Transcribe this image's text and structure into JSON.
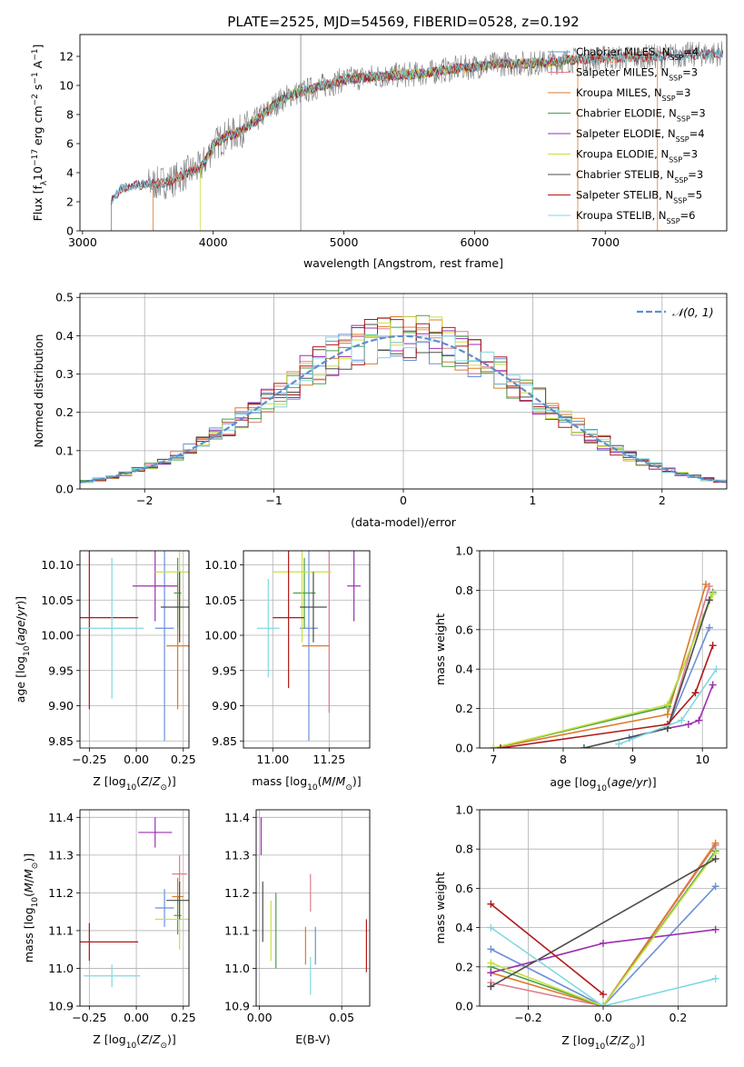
{
  "title": "PLATE=2525, MJD=54569, FIBERID=0528, z=0.192",
  "colors": {
    "Chabrier MILES": "#6a8fd8",
    "Salpeter MILES": "#e07b8a",
    "Kroupa MILES": "#dd7a2a",
    "Chabrier ELODIE": "#4aa04a",
    "Salpeter ELODIE": "#9b30b0",
    "Kroupa ELODIE": "#c8e040",
    "Chabrier STELIB": "#4d4d4d",
    "Salpeter STELIB": "#b01818",
    "Kroupa STELIB": "#80d8e0",
    "data": "#808080",
    "gauss": "#5b8fd0"
  },
  "chart_data": [
    {
      "id": "spectrum",
      "type": "line",
      "xlabel": "wavelength [Angstrom, rest frame]",
      "ylabel": "Flux [f",
      "ylabel_sub": "λ",
      "ylabel_rest": "10",
      "ylabel_exp": "-17",
      "ylabel_units": " erg cm",
      "ylabel_exp2": "-2",
      "ylabel_s": " s",
      "ylabel_exp3": "-1",
      "ylabel_A": " A",
      "ylabel_exp4": "-1",
      "ylabel_end": "]",
      "xlim": [
        2980,
        7930
      ],
      "ylim": [
        0,
        13.5
      ],
      "xticks": [
        3000,
        4000,
        5000,
        6000,
        7000
      ],
      "yticks": [
        0,
        2,
        4,
        6,
        8,
        10,
        12
      ],
      "envelope_x": [
        3220,
        3300,
        3400,
        3500,
        3600,
        3700,
        3800,
        3900,
        3950,
        4000,
        4100,
        4200,
        4300,
        4400,
        4500,
        4600,
        4700,
        4800,
        4900,
        5000,
        5200,
        5400,
        5600,
        5800,
        6000,
        6200,
        6400,
        6600,
        6800,
        7000,
        7200,
        7400,
        7600,
        7900
      ],
      "envelope_y": [
        2.1,
        2.9,
        3.1,
        3.2,
        3.3,
        3.5,
        4.0,
        4.3,
        5.0,
        5.9,
        6.5,
        6.8,
        7.4,
        8.1,
        8.9,
        9.4,
        9.6,
        9.9,
        10.1,
        10.4,
        10.6,
        10.7,
        10.8,
        11.1,
        11.3,
        11.5,
        11.5,
        11.6,
        11.8,
        11.9,
        11.9,
        12.0,
        12.1,
        12.2
      ],
      "series": [
        {
          "name": "Chabrier MILES",
          "nssp": "4"
        },
        {
          "name": "Salpeter MILES",
          "nssp": "3"
        },
        {
          "name": "Kroupa MILES",
          "nssp": "3"
        },
        {
          "name": "Chabrier ELODIE",
          "nssp": "3"
        },
        {
          "name": "Salpeter ELODIE",
          "nssp": "4"
        },
        {
          "name": "Kroupa ELODIE",
          "nssp": "3"
        },
        {
          "name": "Chabrier STELIB",
          "nssp": "3"
        },
        {
          "name": "Salpeter STELIB",
          "nssp": "5"
        },
        {
          "name": "Kroupa STELIB",
          "nssp": "6"
        }
      ],
      "legend_loc": "right"
    },
    {
      "id": "residuals",
      "type": "line",
      "xlabel": "(data-model)/error",
      "ylabel": "Normed distribution",
      "xlim": [
        -2.5,
        2.5
      ],
      "ylim": [
        0,
        0.51
      ],
      "xticks": [
        -2,
        -1,
        0,
        1,
        2
      ],
      "yticks": [
        0.0,
        0.1,
        0.2,
        0.3,
        0.4,
        0.5
      ],
      "bin_width": 0.1,
      "legend": "N(0,1)",
      "legend_loc": "top-right",
      "grid": true
    },
    {
      "id": "age-vs-Z",
      "type": "scatter",
      "xlabel": "Z [log10(Z/Z⊙)]",
      "ylabel": "age  [log10(age/yr)]",
      "xlim": [
        -0.3,
        0.28
      ],
      "ylim": [
        9.84,
        10.12
      ],
      "xticks": [
        -0.25,
        0.0,
        0.25
      ],
      "yticks": [
        9.85,
        9.9,
        9.95,
        10.0,
        10.05,
        10.1
      ],
      "points": [
        {
          "name": "Chabrier MILES",
          "x": 0.15,
          "y": 10.01,
          "xerr": 0.05,
          "yerr": 0.16
        },
        {
          "name": "Salpeter MILES",
          "x": 0.23,
          "y": 10.04,
          "xerr": 0.02,
          "yerr": 0.05
        },
        {
          "name": "Kroupa MILES",
          "x": 0.22,
          "y": 9.985,
          "xerr": 0.06,
          "yerr": 0.09
        },
        {
          "name": "Chabrier ELODIE",
          "x": 0.22,
          "y": 10.06,
          "xerr": 0.02,
          "yerr": 0.05
        },
        {
          "name": "Salpeter ELODIE",
          "x": 0.1,
          "y": 10.07,
          "xerr": 0.12,
          "yerr": 0.05
        },
        {
          "name": "Kroupa ELODIE",
          "x": 0.23,
          "y": 10.09,
          "xerr": 0.13,
          "yerr": 0.1
        },
        {
          "name": "Chabrier STELIB",
          "x": 0.23,
          "y": 10.04,
          "xerr": 0.1,
          "yerr": 0.05
        },
        {
          "name": "Salpeter STELIB",
          "x": -0.25,
          "y": 10.025,
          "xerr": 0.26,
          "yerr": 0.13
        },
        {
          "name": "Kroupa STELIB",
          "x": -0.13,
          "y": 10.01,
          "xerr": 0.17,
          "yerr": 0.1
        }
      ]
    },
    {
      "id": "age-vs-mass",
      "type": "scatter",
      "xlabel": "mass [log10(M/M⊙)]",
      "ylabel": "",
      "xlim": [
        10.87,
        11.43
      ],
      "ylim": [
        9.84,
        10.12
      ],
      "xticks": [
        11.0,
        11.25
      ],
      "yticks": [
        9.85,
        9.9,
        9.95,
        10.0,
        10.05,
        10.1
      ],
      "points": [
        {
          "name": "Chabrier MILES",
          "x": 11.16,
          "y": 10.01,
          "xerr": 0.04,
          "yerr": 0.16
        },
        {
          "name": "Salpeter MILES",
          "x": 11.25,
          "y": 10.04,
          "xerr": 0.0,
          "yerr": 0.15
        },
        {
          "name": "Kroupa MILES",
          "x": 11.19,
          "y": 9.985,
          "xerr": 0.06,
          "yerr": 0.0
        },
        {
          "name": "Chabrier ELODIE",
          "x": 11.14,
          "y": 10.06,
          "xerr": 0.05,
          "yerr": 0.05
        },
        {
          "name": "Salpeter ELODIE",
          "x": 11.36,
          "y": 10.07,
          "xerr": 0.03,
          "yerr": 0.05
        },
        {
          "name": "Kroupa ELODIE",
          "x": 11.13,
          "y": 10.09,
          "xerr": 0.13,
          "yerr": 0.1
        },
        {
          "name": "Chabrier STELIB",
          "x": 11.18,
          "y": 10.04,
          "xerr": 0.06,
          "yerr": 0.05
        },
        {
          "name": "Salpeter STELIB",
          "x": 11.07,
          "y": 10.025,
          "xerr": 0.07,
          "yerr": 0.1
        },
        {
          "name": "Kroupa STELIB",
          "x": 10.98,
          "y": 10.01,
          "xerr": 0.05,
          "yerr": 0.07
        }
      ]
    },
    {
      "id": "mass-weight-vs-age",
      "type": "line",
      "xlabel": "age  [log10(age/yr)]",
      "ylabel": "mass weight",
      "xlim": [
        6.8,
        10.35
      ],
      "ylim": [
        0,
        1.0
      ],
      "xticks": [
        7,
        8,
        9,
        10
      ],
      "yticks": [
        0.0,
        0.2,
        0.4,
        0.6,
        0.8,
        1.0
      ],
      "grid": true,
      "series": [
        {
          "name": "Chabrier MILES",
          "x": [
            8.95,
            9.5,
            10.1
          ],
          "y": [
            0.05,
            0.1,
            0.61
          ]
        },
        {
          "name": "Salpeter MILES",
          "x": [
            9.5,
            10.1
          ],
          "y": [
            0.1,
            0.82
          ]
        },
        {
          "name": "Kroupa MILES",
          "x": [
            7.0,
            9.5,
            10.05
          ],
          "y": [
            0.0,
            0.17,
            0.83
          ]
        },
        {
          "name": "Chabrier ELODIE",
          "x": [
            7.0,
            9.5,
            10.15
          ],
          "y": [
            0.0,
            0.21,
            0.79
          ]
        },
        {
          "name": "Salpeter ELODIE",
          "x": [
            9.5,
            9.8,
            9.95,
            10.15
          ],
          "y": [
            0.1,
            0.12,
            0.14,
            0.32
          ]
        },
        {
          "name": "Kroupa ELODIE",
          "x": [
            7.0,
            9.5,
            10.15
          ],
          "y": [
            0.0,
            0.22,
            0.78
          ]
        },
        {
          "name": "Chabrier STELIB",
          "x": [
            8.3,
            9.5,
            10.1
          ],
          "y": [
            0.0,
            0.1,
            0.75
          ]
        },
        {
          "name": "Salpeter STELIB",
          "x": [
            7.1,
            9.5,
            9.9,
            10.15
          ],
          "y": [
            0.0,
            0.12,
            0.28,
            0.52
          ]
        },
        {
          "name": "Kroupa STELIB",
          "x": [
            8.8,
            9.7,
            10.2
          ],
          "y": [
            0.02,
            0.14,
            0.4
          ]
        }
      ]
    },
    {
      "id": "mass-vs-Z",
      "type": "scatter",
      "xlabel": "Z [log10(Z/Z⊙)]",
      "ylabel": "mass [log10(M/M⊙)]",
      "xlim": [
        -0.3,
        0.28
      ],
      "ylim": [
        10.9,
        11.42
      ],
      "xticks": [
        -0.25,
        0.0,
        0.25
      ],
      "yticks": [
        10.9,
        11.0,
        11.1,
        11.2,
        11.3,
        11.4
      ],
      "points": [
        {
          "name": "Chabrier MILES",
          "x": 0.15,
          "y": 11.16,
          "xerr": 0.05,
          "yerr": 0.05
        },
        {
          "name": "Salpeter MILES",
          "x": 0.23,
          "y": 11.25,
          "xerr": 0.04,
          "yerr": 0.05
        },
        {
          "name": "Kroupa MILES",
          "x": 0.22,
          "y": 11.19,
          "xerr": 0.03,
          "yerr": 0.05
        },
        {
          "name": "Chabrier ELODIE",
          "x": 0.22,
          "y": 11.14,
          "xerr": 0.02,
          "yerr": 0.05
        },
        {
          "name": "Salpeter ELODIE",
          "x": 0.1,
          "y": 11.36,
          "xerr": 0.09,
          "yerr": 0.04
        },
        {
          "name": "Kroupa ELODIE",
          "x": 0.23,
          "y": 11.13,
          "xerr": 0.13,
          "yerr": 0.08
        },
        {
          "name": "Chabrier STELIB",
          "x": 0.23,
          "y": 11.18,
          "xerr": 0.07,
          "yerr": 0.05
        },
        {
          "name": "Salpeter STELIB",
          "x": -0.25,
          "y": 11.07,
          "xerr": 0.26,
          "yerr": 0.05
        },
        {
          "name": "Kroupa STELIB",
          "x": -0.13,
          "y": 10.98,
          "xerr": 0.15,
          "yerr": 0.03
        }
      ]
    },
    {
      "id": "mass-vs-EBV",
      "type": "scatter",
      "xlabel": "E(B-V)",
      "ylabel": "",
      "xlim": [
        -0.002,
        0.067
      ],
      "ylim": [
        10.9,
        11.42
      ],
      "xticks": [
        0.0,
        0.05
      ],
      "yticks": [
        10.9,
        11.0,
        11.1,
        11.2,
        11.3,
        11.4
      ],
      "points": [
        {
          "name": "Chabrier MILES",
          "x": 0.034,
          "y": 11.06,
          "yerr": 0.05
        },
        {
          "name": "Salpeter MILES",
          "x": 0.031,
          "y": 11.2,
          "yerr": 0.05
        },
        {
          "name": "Kroupa MILES",
          "x": 0.028,
          "y": 11.06,
          "yerr": 0.05
        },
        {
          "name": "Chabrier ELODIE",
          "x": 0.01,
          "y": 11.1,
          "yerr": 0.1
        },
        {
          "name": "Salpeter ELODIE",
          "x": 0.001,
          "y": 11.35,
          "yerr": 0.05
        },
        {
          "name": "Kroupa ELODIE",
          "x": 0.007,
          "y": 11.1,
          "yerr": 0.08
        },
        {
          "name": "Chabrier STELIB",
          "x": 0.002,
          "y": 11.15,
          "yerr": 0.08
        },
        {
          "name": "Salpeter STELIB",
          "x": 0.065,
          "y": 11.06,
          "yerr": 0.07
        },
        {
          "name": "Kroupa STELIB",
          "x": 0.031,
          "y": 10.98,
          "yerr": 0.05
        }
      ]
    },
    {
      "id": "mass-weight-vs-Z",
      "type": "line",
      "xlabel": "Z [log10(Z/Z⊙)]",
      "ylabel": "mass weight",
      "xlim": [
        -0.33,
        0.33
      ],
      "ylim": [
        0,
        1.0
      ],
      "xticks": [
        -0.2,
        0.0,
        0.2
      ],
      "yticks": [
        0.0,
        0.2,
        0.4,
        0.6,
        0.8,
        1.0
      ],
      "grid": true,
      "series": [
        {
          "name": "Chabrier MILES",
          "x": [
            -0.3,
            0.0,
            0.3
          ],
          "y": [
            0.29,
            0.0,
            0.61
          ]
        },
        {
          "name": "Salpeter MILES",
          "x": [
            -0.3,
            0.0,
            0.3
          ],
          "y": [
            0.12,
            0.0,
            0.82
          ]
        },
        {
          "name": "Kroupa MILES",
          "x": [
            -0.3,
            0.0,
            0.3
          ],
          "y": [
            0.17,
            0.0,
            0.83
          ]
        },
        {
          "name": "Chabrier ELODIE",
          "x": [
            -0.3,
            0.0,
            0.3
          ],
          "y": [
            0.2,
            0.0,
            0.79
          ]
        },
        {
          "name": "Salpeter ELODIE",
          "x": [
            -0.3,
            0.0,
            0.3
          ],
          "y": [
            0.17,
            0.32,
            0.39
          ]
        },
        {
          "name": "Kroupa ELODIE",
          "x": [
            -0.3,
            0.0,
            0.3
          ],
          "y": [
            0.22,
            0.0,
            0.78
          ]
        },
        {
          "name": "Chabrier STELIB",
          "x": [
            -0.3,
            0.3
          ],
          "y": [
            0.1,
            0.75
          ]
        },
        {
          "name": "Salpeter STELIB",
          "x": [
            -0.3,
            0.0
          ],
          "y": [
            0.52,
            0.06
          ]
        },
        {
          "name": "Kroupa STELIB",
          "x": [
            -0.3,
            0.0,
            0.3
          ],
          "y": [
            0.4,
            0.0,
            0.14
          ]
        }
      ]
    }
  ]
}
